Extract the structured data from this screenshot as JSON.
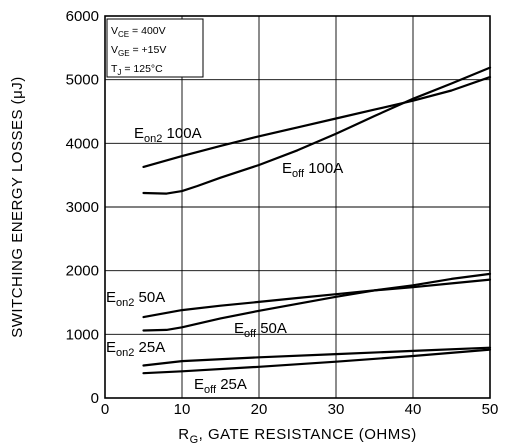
{
  "chart_data": {
    "type": "line",
    "title": "",
    "xlabel": {
      "main": "R",
      "sub": "G",
      "rest": ", GATE  RESISTANCE (OHMS)"
    },
    "ylabel": "SWITCHING  ENERGY  LOSSES (μJ)",
    "xlim": [
      0,
      50
    ],
    "ylim": [
      0,
      6000
    ],
    "xticks": [
      0,
      10,
      20,
      30,
      40,
      50
    ],
    "yticks": [
      0,
      1000,
      2000,
      3000,
      4000,
      5000,
      6000
    ],
    "grid": true,
    "conditions": [
      {
        "main": "V",
        "sub": "CE",
        "rest": " =  400V"
      },
      {
        "main": "V",
        "sub": "GE",
        "rest": " = +15V"
      },
      {
        "main": "T",
        "sub": "J",
        "rest": " = 125°C"
      }
    ],
    "series": [
      {
        "name": "E_on2 100A",
        "label": {
          "main": "E",
          "sub": "on2",
          "rest": " 100A"
        },
        "x": [
          5,
          10,
          15,
          20,
          25,
          30,
          35,
          40,
          45,
          50
        ],
        "y": [
          3630,
          3800,
          3960,
          4110,
          4250,
          4390,
          4530,
          4670,
          4830,
          5040
        ]
      },
      {
        "name": "E_off 100A",
        "label": {
          "main": "E",
          "sub": "off",
          "rest": " 100A"
        },
        "x": [
          5,
          8,
          10,
          12,
          15,
          20,
          25,
          30,
          35,
          40,
          45,
          50
        ],
        "y": [
          3220,
          3210,
          3250,
          3330,
          3460,
          3660,
          3890,
          4150,
          4430,
          4700,
          4940,
          5190
        ]
      },
      {
        "name": "E_on2 50A",
        "label": {
          "main": "E",
          "sub": "on2",
          "rest": " 50A"
        },
        "x": [
          5,
          10,
          15,
          20,
          25,
          30,
          35,
          40,
          45,
          50
        ],
        "y": [
          1270,
          1380,
          1450,
          1510,
          1570,
          1630,
          1690,
          1740,
          1800,
          1860
        ]
      },
      {
        "name": "E_off 50A",
        "label": {
          "main": "E",
          "sub": "off",
          "rest": " 50A"
        },
        "x": [
          5,
          8,
          10,
          15,
          20,
          25,
          30,
          35,
          40,
          45,
          50
        ],
        "y": [
          1060,
          1070,
          1110,
          1250,
          1370,
          1480,
          1590,
          1690,
          1770,
          1870,
          1950
        ]
      },
      {
        "name": "E_on2 25A",
        "label": {
          "main": "E",
          "sub": "on2",
          "rest": " 25A"
        },
        "x": [
          5,
          10,
          20,
          30,
          40,
          50
        ],
        "y": [
          510,
          580,
          640,
          690,
          740,
          790
        ]
      },
      {
        "name": "E_off 25A",
        "label": {
          "main": "E",
          "sub": "off",
          "rest": " 25A"
        },
        "x": [
          5,
          10,
          20,
          30,
          40,
          50
        ],
        "y": [
          390,
          420,
          490,
          570,
          660,
          760
        ]
      }
    ]
  }
}
